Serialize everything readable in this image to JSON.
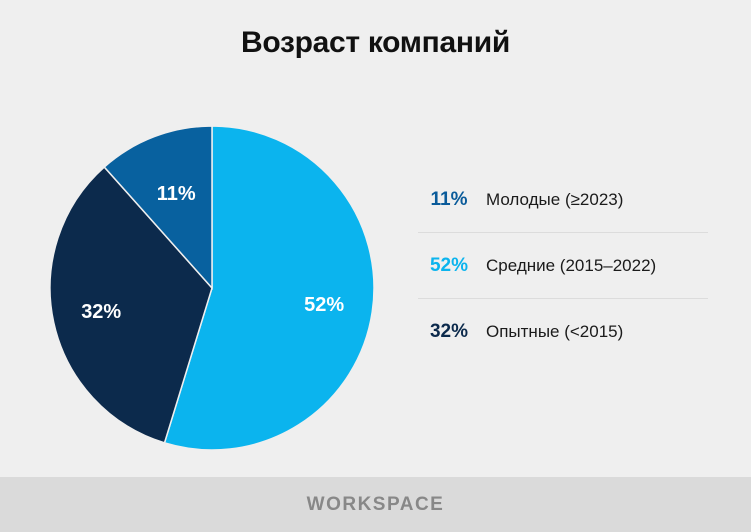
{
  "title": "Возраст компаний",
  "chart_data": {
    "type": "pie",
    "title": "Возраст компаний",
    "slices": [
      {
        "label": "Средние (2015–2022)",
        "value": 52,
        "display": "52%",
        "color": "#0bb4ee",
        "text_color": "#ffffff"
      },
      {
        "label": "Опытные (<2015)",
        "value": 32,
        "display": "32%",
        "color": "#0c2a4c",
        "text_color": "#ffffff"
      },
      {
        "label": "Молодые (≥2023)",
        "value": 11,
        "display": "11%",
        "color": "#08619f",
        "text_color": "#ffffff"
      }
    ],
    "legend": [
      {
        "pct": "11%",
        "label": "Молодые (≥2023)",
        "color": "#0a5b9a"
      },
      {
        "pct": "52%",
        "label": "Средние (2015–2022)",
        "color": "#0bb4ee"
      },
      {
        "pct": "32%",
        "label": "Опытные (<2015)",
        "color": "#0c2a4c"
      }
    ],
    "legend_position": "right"
  },
  "footer": {
    "brand_pre": "W",
    "brand_o": "O",
    "brand_post": "RKSPACE"
  }
}
